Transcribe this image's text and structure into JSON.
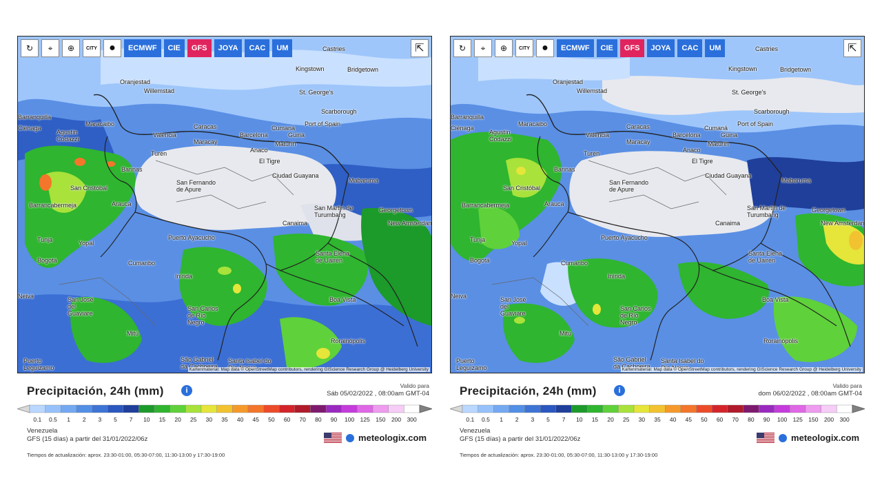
{
  "toolbar": {
    "refresh_icon": "↻",
    "location_icon": "⌖",
    "zoom_icon": "⊕",
    "city_toggle": "CITY",
    "dot_icon": "●",
    "models": [
      "ECMWF",
      "CIE",
      "GFS",
      "JOYA",
      "CAC",
      "UM"
    ],
    "active_model": "GFS",
    "share_icon": "⇱"
  },
  "attribution": "Kartenmaterial: Map data © OpenStreetMap contributors, rendering GIScience Research Group @ Heidelberg University",
  "legend": {
    "ticks": [
      "0.1",
      "0.5",
      "1",
      "2",
      "3",
      "5",
      "7",
      "10",
      "15",
      "20",
      "25",
      "30",
      "35",
      "40",
      "45",
      "50",
      "60",
      "70",
      "80",
      "90",
      "100",
      "125",
      "150",
      "200",
      "300"
    ],
    "colors": [
      "#b9d7ff",
      "#96c1fb",
      "#74a9f2",
      "#528fe6",
      "#3d74d6",
      "#2a57c0",
      "#1f3f9a",
      "#1c9a2a",
      "#2fb52f",
      "#5fd13a",
      "#a8e23a",
      "#e5e53a",
      "#f2c230",
      "#f59a2a",
      "#f3762a",
      "#ec4b2a",
      "#d4242a",
      "#b01a2a",
      "#7e1a6e",
      "#9a2abf",
      "#c53cdc",
      "#e067e6",
      "#ee9bf0",
      "#f6cdf7",
      "#ffffff"
    ]
  },
  "panels": [
    {
      "title": "Precipitación, 24h (mm)",
      "info_icon": "i",
      "valid_label": "Valido para",
      "valid_value": "Sáb 05/02/2022 , 08:00am GMT-04",
      "region": "Venezuela",
      "model_run": "GFS (15 días) a partir del 31/01/2022/06z",
      "update_times": "Tiempos de actualización: aprox. 23:30-01:00, 05:30-07:00, 11:30-13:00 y 17:30-19:00",
      "brand": "meteologix.com",
      "cities": [
        "Castries",
        "Kingstown",
        "Bridgetown",
        "St. George's",
        "Oranjestad",
        "Willemstad",
        "Scarborough",
        "Port of Spain",
        "Barranquilla",
        "Ciénaga",
        "Agustín Codazzi",
        "Maracaibo",
        "Valencia",
        "Caracas",
        "Maracay",
        "Barcelona",
        "Cumaná",
        "Güiria",
        "Turén",
        "Anaco",
        "Maturín",
        "Barinas",
        "El Tigre",
        "San Fernando de Apure",
        "Ciudad Guayana",
        "Mabaruma",
        "San Cristóbal",
        "Barrancabermeja",
        "Arauca",
        "San Martín de Turumbang",
        "Georgetown",
        "New Amsterdam",
        "Canaima",
        "Tunja",
        "Yopal",
        "Puerto Ayacucho",
        "Bogotá",
        "Cumaribo",
        "Santa Elena de Uairén",
        "Inírida",
        "Neiva",
        "San José del Guaviare",
        "San Carlos de Río Negro",
        "Boa Vista",
        "Mitú",
        "Rorainópolis",
        "Puerto Leguízamo",
        "São Gabriel da Cachoeira",
        "Santa Isabel do Rio Negro"
      ]
    },
    {
      "title": "Precipitación, 24h (mm)",
      "info_icon": "i",
      "valid_label": "Valido para",
      "valid_value": "dom 06/02/2022 , 08:00am GMT-04",
      "region": "Venezuela",
      "model_run": "GFS (15 días) a partir del 31/01/2022/06z",
      "update_times": "Tiempos de actualización: aprox. 23:30-01:00, 05:30-07:00, 11:30-13:00 y 17:30-19:00",
      "brand": "meteologix.com",
      "cities": [
        "Castries",
        "Kingstown",
        "Bridgetown",
        "St. George's",
        "Oranjestad",
        "Willemstad",
        "Scarborough",
        "Port of Spain",
        "Barranquilla",
        "Ciénaga",
        "Agustín Codazzi",
        "Maracaibo",
        "Valencia",
        "Caracas",
        "Maracay",
        "Barcelona",
        "Cumaná",
        "Güiria",
        "Turén",
        "Anaco",
        "Maturín",
        "Barinas",
        "El Tigre",
        "San Fernando de Apure",
        "Ciudad Guayana",
        "Mabaruma",
        "San Cristóbal",
        "Barrancabermeja",
        "Arauca",
        "San Martín de Turumbang",
        "Georgetown",
        "New Amsterdam",
        "Canaima",
        "Tunja",
        "Yopal",
        "Puerto Ayacucho",
        "Bogotá",
        "Cumaribo",
        "Santa Elena de Uairén",
        "Inírida",
        "Neiva",
        "San José del Guaviare",
        "San Carlos de Río Negro",
        "Boa Vista",
        "Mitú",
        "Rorainópolis",
        "Puerto Leguízamo",
        "São Gabriel da Cachoeira",
        "Santa Isabel do Rio Negro"
      ]
    }
  ]
}
